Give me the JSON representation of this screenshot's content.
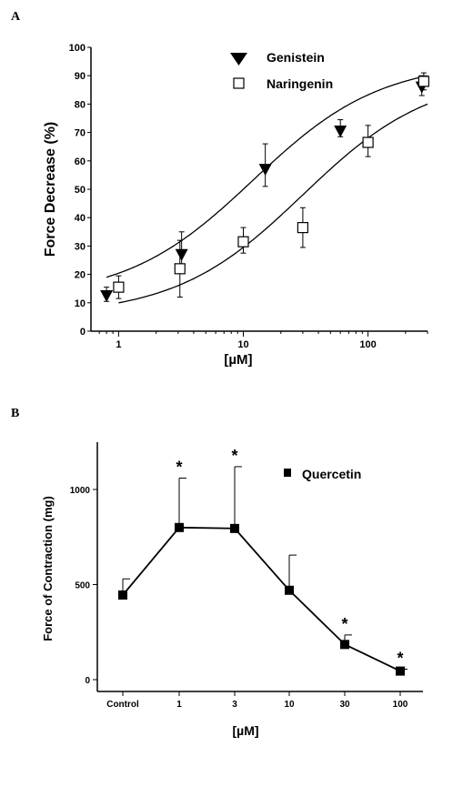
{
  "chart_data": [
    {
      "panel_label": "A",
      "type": "scatter",
      "xscale": "log",
      "xlabel": "[µM]",
      "ylabel": "Force Decrease (%)",
      "xlim": [
        0.6,
        300
      ],
      "ylim": [
        0,
        100
      ],
      "xticks": [
        {
          "value": 1,
          "label": "1"
        },
        {
          "value": 10,
          "label": "10"
        },
        {
          "value": 100,
          "label": "100"
        }
      ],
      "yticks": [
        0,
        10,
        20,
        30,
        40,
        50,
        60,
        70,
        80,
        90,
        100
      ],
      "legend_position": "top-center",
      "series": [
        {
          "name": "Genistein",
          "marker": "filled-triangle-down",
          "x": [
            0.8,
            3.2,
            15,
            60,
            270
          ],
          "y": [
            12.5,
            27,
            57,
            70.5,
            86
          ],
          "err_up": [
            3,
            8,
            9,
            4,
            4
          ],
          "err_down": [
            2,
            5,
            6,
            2,
            3
          ],
          "fit": [
            19,
            90
          ]
        },
        {
          "name": "Naringenin",
          "marker": "open-square",
          "x": [
            1,
            3.1,
            10,
            30,
            100,
            280
          ],
          "y": [
            15.5,
            22,
            31.5,
            36.5,
            66.5,
            88
          ],
          "err_up": [
            4,
            10,
            5,
            7,
            6,
            3
          ],
          "err_down": [
            4,
            10,
            4,
            7,
            5,
            3
          ],
          "fit": [
            10,
            80
          ]
        }
      ]
    },
    {
      "panel_label": "B",
      "type": "line",
      "xlabel": "[µM]",
      "ylabel": "Force of Contraction (mg)",
      "categories": [
        "Control",
        "1",
        "3",
        "10",
        "30",
        "100"
      ],
      "ylim": [
        0,
        1300
      ],
      "yticks": [
        0,
        500,
        1000
      ],
      "legend_position": "top-right",
      "series": [
        {
          "name": "Quercetin",
          "marker": "filled-square",
          "values": [
            445,
            800,
            795,
            470,
            185,
            45
          ],
          "err_up": [
            85,
            260,
            325,
            185,
            50,
            10
          ],
          "significant": [
            false,
            true,
            true,
            false,
            true,
            true
          ],
          "significance_marker": "*"
        }
      ]
    }
  ]
}
